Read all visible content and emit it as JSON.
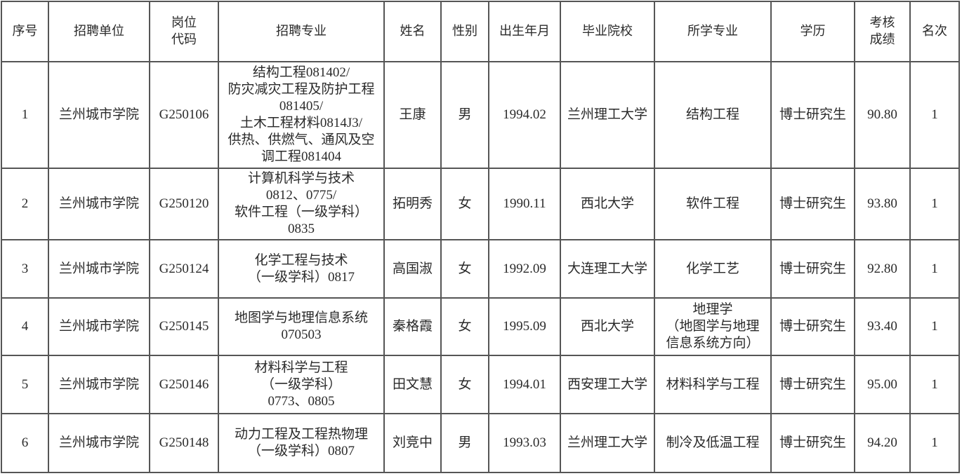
{
  "headers": [
    "序号",
    "招聘单位",
    "岗位\n代码",
    "招聘专业",
    "姓名",
    "性别",
    "出生年月",
    "毕业院校",
    "所学专业",
    "学历",
    "考核\n成绩",
    "名次"
  ],
  "rows": [
    [
      "1",
      "兰州城市学院",
      "G250106",
      "结构工程081402/\n防灾减灾工程及防护工程\n081405/\n土木工程材料0814J3/\n供热、供燃气、通风及空\n调工程081404",
      "王康",
      "男",
      "1994.02",
      "兰州理工大学",
      "结构工程",
      "博士研究生",
      "90.80",
      "1"
    ],
    [
      "2",
      "兰州城市学院",
      "G250120",
      "计算机科学与技术\n0812、0775/\n软件工程（一级学科）\n0835",
      "拓明秀",
      "女",
      "1990.11",
      "西北大学",
      "软件工程",
      "博士研究生",
      "93.80",
      "1"
    ],
    [
      "3",
      "兰州城市学院",
      "G250124",
      "化学工程与技术\n（一级学科）0817",
      "高国淑",
      "女",
      "1992.09",
      "大连理工大学",
      "化学工艺",
      "博士研究生",
      "92.80",
      "1"
    ],
    [
      "4",
      "兰州城市学院",
      "G250145",
      "地图学与地理信息系统\n070503",
      "秦格霞",
      "女",
      "1995.09",
      "西北大学",
      "地理学\n（地图学与地理\n信息系统方向）",
      "博士研究生",
      "93.40",
      "1"
    ],
    [
      "5",
      "兰州城市学院",
      "G250146",
      "材料科学与工程\n（一级学科）\n0773、0805",
      "田文慧",
      "女",
      "1994.01",
      "西安理工大学",
      "材料科学与工程",
      "博士研究生",
      "95.00",
      "1"
    ],
    [
      "6",
      "兰州城市学院",
      "G250148",
      "动力工程及工程热物理\n（一级学科）0807",
      "刘竞中",
      "男",
      "1993.03",
      "兰州理工大学",
      "制冷及低温工程",
      "博士研究生",
      "94.20",
      "1"
    ]
  ]
}
